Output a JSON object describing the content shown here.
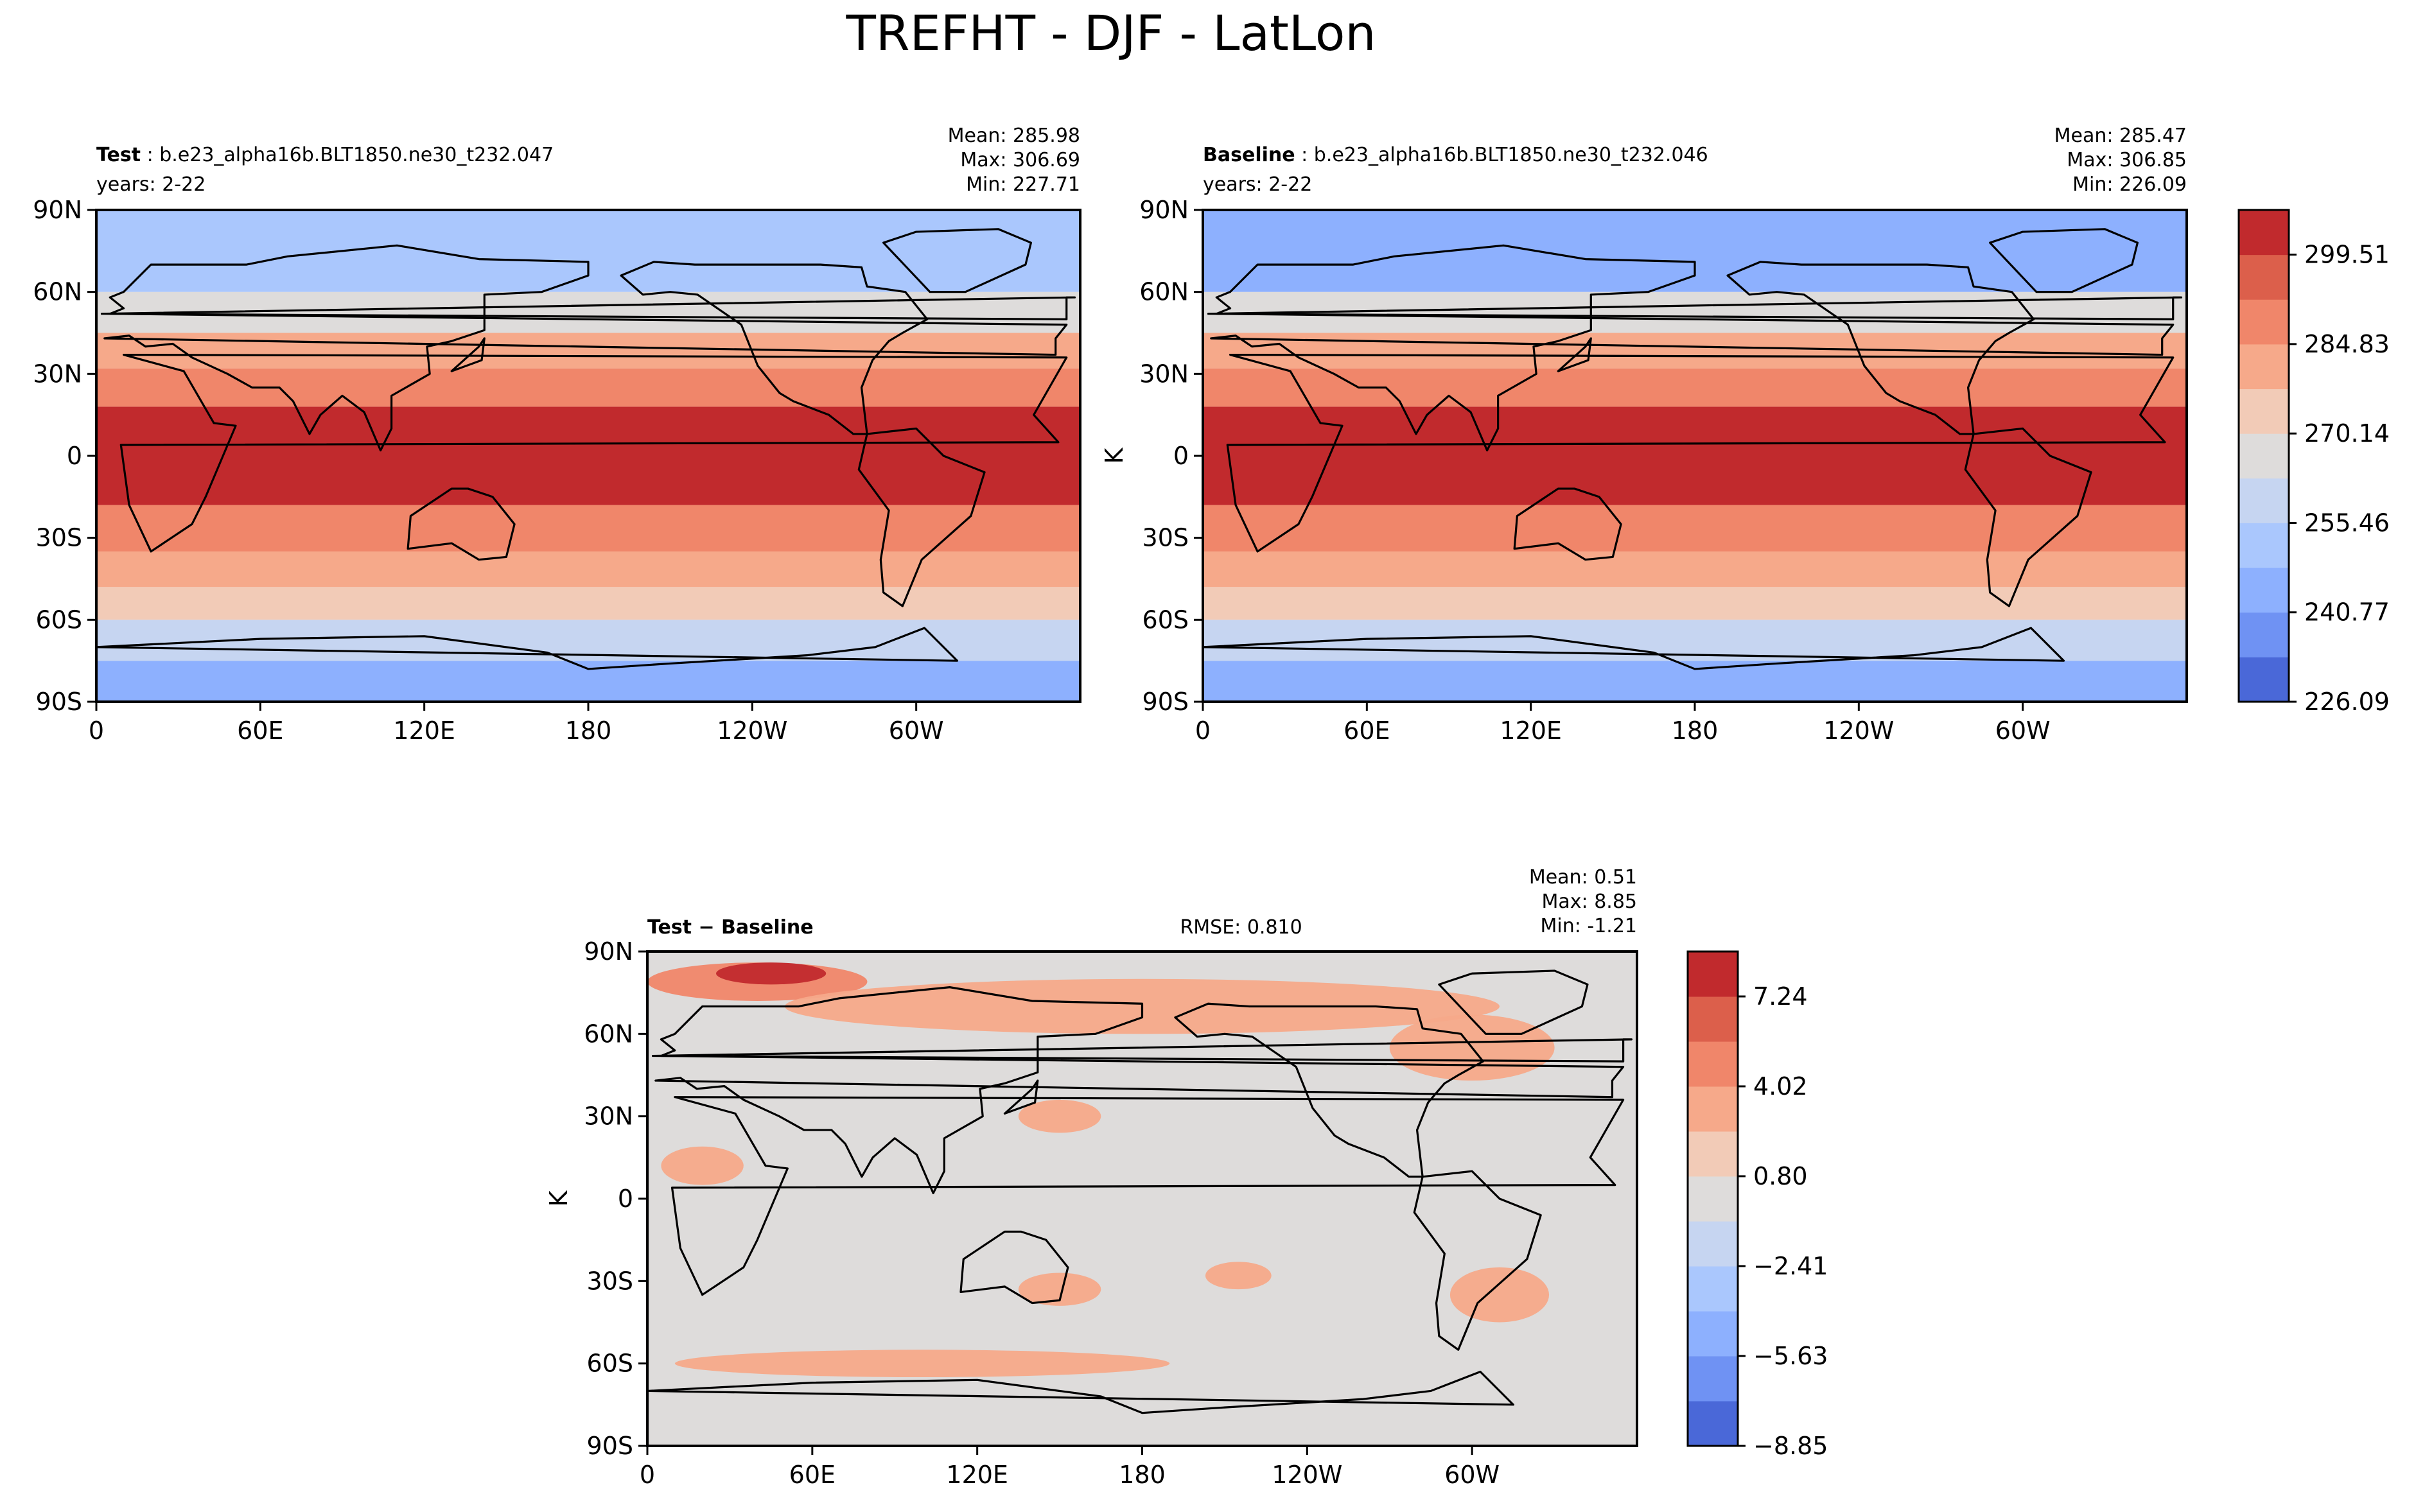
{
  "figure": {
    "title": "TREFHT - DJF - LatLon"
  },
  "colors": {
    "warm": [
      "#dedcdb",
      "#f2cbb7",
      "#f6a98a",
      "#f0866a",
      "#dc5f4b",
      "#c12a2d"
    ],
    "cool": [
      "#dedcdb",
      "#c6d5f1",
      "#aac7fd",
      "#8db0fe",
      "#6f92f3",
      "#4a68d8"
    ],
    "scale_full": [
      "#4a68d8",
      "#6f92f3",
      "#8db0fe",
      "#aac7fd",
      "#c6d5f1",
      "#dedcdb",
      "#f2cbb7",
      "#f6a98a",
      "#f0866a",
      "#dc5f4b",
      "#c12a2d"
    ],
    "scale_diff": [
      "#4a68d8",
      "#6f92f3",
      "#8db0fe",
      "#aac7fd",
      "#c6d5f1",
      "#dedcdb",
      "#f2cbb7",
      "#f6a98a",
      "#f0866a",
      "#dc5f4b",
      "#c12a2d"
    ]
  },
  "chart_data": [
    {
      "type": "heatmap",
      "panel": "test",
      "label_bold": "Test",
      "label_rest": ": b.e23_alpha16b.BLT1850.ne30_t232.047",
      "years": "years: 2-22",
      "stats": [
        "Mean: 285.98",
        "Max: 306.69",
        "Min: 227.71"
      ],
      "ylabel": "",
      "x_ticks": [
        "0",
        "60E",
        "120E",
        "180",
        "120W",
        "60W"
      ],
      "y_ticks": [
        "90N",
        "60N",
        "30N",
        "0",
        "30S",
        "60S",
        "90S"
      ],
      "lat_bands": [
        {
          "lat": [
            -90,
            -75
          ],
          "level": 245
        },
        {
          "lat": [
            -75,
            -60
          ],
          "level": 262
        },
        {
          "lat": [
            -60,
            -48
          ],
          "level": 272
        },
        {
          "lat": [
            -48,
            -35
          ],
          "level": 282
        },
        {
          "lat": [
            -35,
            -18
          ],
          "level": 292
        },
        {
          "lat": [
            -18,
            18
          ],
          "level": 302
        },
        {
          "lat": [
            18,
            32
          ],
          "level": 292
        },
        {
          "lat": [
            32,
            45
          ],
          "level": 282
        },
        {
          "lat": [
            45,
            60
          ],
          "level": 268
        },
        {
          "lat": [
            60,
            90
          ],
          "level": 250
        }
      ]
    },
    {
      "type": "heatmap",
      "panel": "baseline",
      "label_bold": "Baseline",
      "label_rest": ": b.e23_alpha16b.BLT1850.ne30_t232.046",
      "years": "years: 2-22",
      "stats": [
        "Mean: 285.47",
        "Max: 306.85",
        "Min: 226.09"
      ],
      "ylabel": "K",
      "x_ticks": [
        "0",
        "60E",
        "120E",
        "180",
        "120W",
        "60W"
      ],
      "y_ticks": [
        "90N",
        "60N",
        "30N",
        "0",
        "30S",
        "60S",
        "90S"
      ],
      "lat_bands": [
        {
          "lat": [
            -90,
            -75
          ],
          "level": 244
        },
        {
          "lat": [
            -75,
            -60
          ],
          "level": 262
        },
        {
          "lat": [
            -60,
            -48
          ],
          "level": 272
        },
        {
          "lat": [
            -48,
            -35
          ],
          "level": 282
        },
        {
          "lat": [
            -35,
            -18
          ],
          "level": 292
        },
        {
          "lat": [
            -18,
            18
          ],
          "level": 302
        },
        {
          "lat": [
            18,
            32
          ],
          "level": 292
        },
        {
          "lat": [
            32,
            45
          ],
          "level": 282
        },
        {
          "lat": [
            45,
            60
          ],
          "level": 268
        },
        {
          "lat": [
            60,
            90
          ],
          "level": 248
        }
      ],
      "colorbar": {
        "min": 226.09,
        "max": 306.69,
        "tick_labels": [
          "226.09",
          "240.77",
          "255.46",
          "270.14",
          "284.83",
          "299.51"
        ]
      }
    },
    {
      "type": "heatmap",
      "panel": "difference",
      "label_bold": "Test − Baseline",
      "rmse": "RMSE: 0.810",
      "stats": [
        "Mean:  0.51",
        "Max:  8.85",
        "Min: -1.21"
      ],
      "ylabel": "K",
      "x_ticks": [
        "0",
        "60E",
        "120E",
        "180",
        "120W",
        "60W"
      ],
      "y_ticks": [
        "90N",
        "60N",
        "30N",
        "0",
        "30S",
        "60S",
        "90S"
      ],
      "background_level": 0,
      "blobs": [
        {
          "lon": 40,
          "lat": 79,
          "rx": 40,
          "ry": 7,
          "level": 3
        },
        {
          "lon": 45,
          "lat": 82,
          "rx": 20,
          "ry": 4,
          "level": 6
        },
        {
          "lon": 180,
          "lat": 70,
          "rx": 130,
          "ry": 10,
          "level": 2
        },
        {
          "lon": 300,
          "lat": 55,
          "rx": 30,
          "ry": 12,
          "level": 2
        },
        {
          "lon": 150,
          "lat": 30,
          "rx": 15,
          "ry": 6,
          "level": 2
        },
        {
          "lon": 20,
          "lat": 12,
          "rx": 15,
          "ry": 7,
          "level": 2
        },
        {
          "lon": 150,
          "lat": -33,
          "rx": 15,
          "ry": 6,
          "level": 2
        },
        {
          "lon": 215,
          "lat": -28,
          "rx": 12,
          "ry": 5,
          "level": 2
        },
        {
          "lon": 310,
          "lat": -35,
          "rx": 18,
          "ry": 10,
          "level": 2
        },
        {
          "lon": 100,
          "lat": -60,
          "rx": 90,
          "ry": 5,
          "level": 2
        }
      ],
      "colorbar": {
        "min": -8.85,
        "max": 8.85,
        "tick_labels": [
          "−8.85",
          "−5.63",
          "−2.41",
          "0.80",
          "4.02",
          "7.24"
        ]
      }
    }
  ]
}
